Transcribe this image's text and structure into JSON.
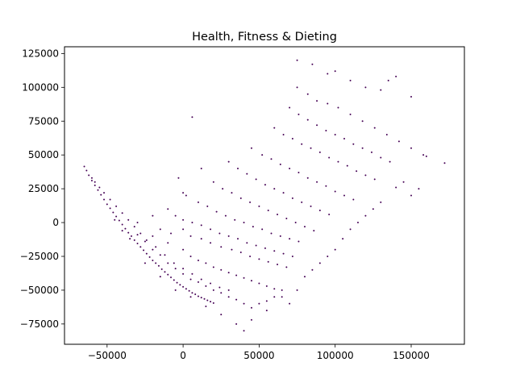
{
  "chart_data": {
    "type": "scatter",
    "title": "Health, Fitness & Dieting",
    "xlabel": "",
    "ylabel": "",
    "xlim": [
      -78000,
      185000
    ],
    "ylim": [
      -90000,
      130000
    ],
    "xticks": [
      -50000,
      0,
      50000,
      100000,
      150000
    ],
    "xtick_labels": [
      "−50000",
      "0",
      "50000",
      "100000",
      "150000"
    ],
    "yticks": [
      -75000,
      -50000,
      -25000,
      0,
      25000,
      50000,
      75000,
      100000,
      125000
    ],
    "ytick_labels": [
      "−75000",
      "−50000",
      "−25000",
      "0",
      "25000",
      "50000",
      "75000",
      "100000",
      "125000"
    ],
    "grid": false,
    "legend": "none",
    "marker_color": "#440154",
    "series": [
      {
        "points": [
          [
            -65000,
            41500
          ],
          [
            -63500,
            38500
          ],
          [
            -62000,
            35000
          ],
          [
            -60000,
            31000
          ],
          [
            -58000,
            27500
          ],
          [
            -56000,
            24000
          ],
          [
            -54000,
            20500
          ],
          [
            -52000,
            17000
          ],
          [
            -50000,
            13500
          ],
          [
            -48000,
            10500
          ],
          [
            -46000,
            7500
          ],
          [
            -44000,
            4500
          ],
          [
            -42000,
            1500
          ],
          [
            -40000,
            -1500
          ],
          [
            -38000,
            -4500
          ],
          [
            -36000,
            -7500
          ],
          [
            -34000,
            -10000
          ],
          [
            -32000,
            -13000
          ],
          [
            -30000,
            -15500
          ],
          [
            -28000,
            -18000
          ],
          [
            -26000,
            -20500
          ],
          [
            -24000,
            -23000
          ],
          [
            -22000,
            -25500
          ],
          [
            -20000,
            -28000
          ],
          [
            -18000,
            -30000
          ],
          [
            -16000,
            -32000
          ],
          [
            -14000,
            -34500
          ],
          [
            -12000,
            -36500
          ],
          [
            -10000,
            -38500
          ],
          [
            -8000,
            -40500
          ],
          [
            -6000,
            -42500
          ],
          [
            -4000,
            -44500
          ],
          [
            -2000,
            -46000
          ],
          [
            0,
            -47500
          ],
          [
            2000,
            -49000
          ],
          [
            4000,
            -50500
          ],
          [
            6000,
            -52000
          ],
          [
            8000,
            -53000
          ],
          [
            10000,
            -54500
          ],
          [
            12000,
            -55500
          ],
          [
            14000,
            -56500
          ],
          [
            16000,
            -57500
          ],
          [
            18000,
            -58500
          ],
          [
            20000,
            -59500
          ],
          [
            -45000,
            2000
          ],
          [
            -40000,
            -6000
          ],
          [
            -35000,
            -12000
          ],
          [
            -30000,
            -9000
          ],
          [
            -25000,
            -14000
          ],
          [
            -20000,
            -20000
          ],
          [
            -15000,
            -24000
          ],
          [
            -10000,
            -30000
          ],
          [
            -5000,
            -34000
          ],
          [
            0,
            -38000
          ],
          [
            5000,
            -42000
          ],
          [
            10000,
            -44000
          ],
          [
            15000,
            -47000
          ],
          [
            20000,
            -50000
          ],
          [
            25000,
            -52000
          ],
          [
            30000,
            -55000
          ],
          [
            35000,
            -57000
          ],
          [
            40000,
            -60000
          ],
          [
            45000,
            -63000
          ],
          [
            50000,
            -60000
          ],
          [
            55000,
            -58000
          ],
          [
            60000,
            -55000
          ],
          [
            -20000,
            -10000
          ],
          [
            -10000,
            -15000
          ],
          [
            0,
            -20000
          ],
          [
            5000,
            -25000
          ],
          [
            10000,
            -28000
          ],
          [
            15000,
            -30000
          ],
          [
            20000,
            -33000
          ],
          [
            25000,
            -35000
          ],
          [
            30000,
            -37000
          ],
          [
            35000,
            -39000
          ],
          [
            40000,
            -41000
          ],
          [
            45000,
            -43000
          ],
          [
            50000,
            -45000
          ],
          [
            55000,
            -47000
          ],
          [
            60000,
            -49000
          ],
          [
            65000,
            -50000
          ],
          [
            -15000,
            -5000
          ],
          [
            -8000,
            -8000
          ],
          [
            0,
            -5000
          ],
          [
            5000,
            -10000
          ],
          [
            12000,
            -12000
          ],
          [
            18000,
            -15000
          ],
          [
            25000,
            -18000
          ],
          [
            32000,
            -20000
          ],
          [
            38000,
            -22000
          ],
          [
            44000,
            -25000
          ],
          [
            50000,
            -27000
          ],
          [
            56000,
            -29000
          ],
          [
            62000,
            -31000
          ],
          [
            68000,
            -33000
          ],
          [
            -5000,
            5000
          ],
          [
            0,
            2000
          ],
          [
            6000,
            0
          ],
          [
            12000,
            -2000
          ],
          [
            18000,
            -5000
          ],
          [
            24000,
            -8000
          ],
          [
            30000,
            -10000
          ],
          [
            36000,
            -12000
          ],
          [
            42000,
            -15000
          ],
          [
            48000,
            -17000
          ],
          [
            54000,
            -19000
          ],
          [
            60000,
            -21000
          ],
          [
            66000,
            -23000
          ],
          [
            72000,
            -25000
          ],
          [
            2000,
            20000
          ],
          [
            10000,
            15000
          ],
          [
            16000,
            12000
          ],
          [
            22000,
            8000
          ],
          [
            28000,
            5000
          ],
          [
            34000,
            2000
          ],
          [
            40000,
            0
          ],
          [
            46000,
            -3000
          ],
          [
            52000,
            -5000
          ],
          [
            58000,
            -8000
          ],
          [
            64000,
            -10000
          ],
          [
            70000,
            -12000
          ],
          [
            76000,
            -14000
          ],
          [
            20000,
            30000
          ],
          [
            26000,
            25000
          ],
          [
            32000,
            22000
          ],
          [
            38000,
            18000
          ],
          [
            44000,
            15000
          ],
          [
            50000,
            12000
          ],
          [
            56000,
            9000
          ],
          [
            62000,
            6000
          ],
          [
            68000,
            3000
          ],
          [
            74000,
            0
          ],
          [
            80000,
            -3000
          ],
          [
            86000,
            -6000
          ],
          [
            30000,
            45000
          ],
          [
            36000,
            40000
          ],
          [
            42000,
            36000
          ],
          [
            48000,
            32000
          ],
          [
            54000,
            28000
          ],
          [
            60000,
            25000
          ],
          [
            66000,
            22000
          ],
          [
            72000,
            18000
          ],
          [
            78000,
            15000
          ],
          [
            84000,
            12000
          ],
          [
            90000,
            9000
          ],
          [
            96000,
            6000
          ],
          [
            45000,
            55000
          ],
          [
            52000,
            50000
          ],
          [
            58000,
            47000
          ],
          [
            64000,
            43000
          ],
          [
            70000,
            40000
          ],
          [
            76000,
            37000
          ],
          [
            82000,
            33000
          ],
          [
            88000,
            30000
          ],
          [
            94000,
            27000
          ],
          [
            100000,
            23000
          ],
          [
            106000,
            20000
          ],
          [
            112000,
            17000
          ],
          [
            60000,
            70000
          ],
          [
            66000,
            65000
          ],
          [
            72000,
            62000
          ],
          [
            78000,
            58000
          ],
          [
            84000,
            55000
          ],
          [
            90000,
            52000
          ],
          [
            96000,
            48000
          ],
          [
            102000,
            45000
          ],
          [
            108000,
            42000
          ],
          [
            114000,
            38000
          ],
          [
            120000,
            35000
          ],
          [
            126000,
            32000
          ],
          [
            70000,
            85000
          ],
          [
            76000,
            80000
          ],
          [
            82000,
            76000
          ],
          [
            88000,
            72000
          ],
          [
            94000,
            68000
          ],
          [
            100000,
            65000
          ],
          [
            106000,
            62000
          ],
          [
            112000,
            58000
          ],
          [
            118000,
            55000
          ],
          [
            124000,
            52000
          ],
          [
            130000,
            48000
          ],
          [
            136000,
            45000
          ],
          [
            75000,
            100000
          ],
          [
            82000,
            95000
          ],
          [
            88000,
            90000
          ],
          [
            95000,
            88000
          ],
          [
            102000,
            85000
          ],
          [
            110000,
            80000
          ],
          [
            118000,
            75000
          ],
          [
            126000,
            70000
          ],
          [
            134000,
            65000
          ],
          [
            142000,
            60000
          ],
          [
            150000,
            55000
          ],
          [
            158000,
            50000
          ],
          [
            75000,
            120000
          ],
          [
            85000,
            117000
          ],
          [
            95000,
            110000
          ],
          [
            100000,
            112000
          ],
          [
            110000,
            105000
          ],
          [
            120000,
            100000
          ],
          [
            130000,
            98000
          ],
          [
            135000,
            105000
          ],
          [
            140000,
            108000
          ],
          [
            150000,
            93000
          ],
          [
            160000,
            49000
          ],
          [
            172000,
            44000
          ],
          [
            6000,
            78000
          ],
          [
            -3000,
            33000
          ],
          [
            12000,
            40000
          ],
          [
            0,
            22000
          ],
          [
            -10000,
            10000
          ],
          [
            -20000,
            5000
          ],
          [
            -30000,
            0
          ],
          [
            -25000,
            -30000
          ],
          [
            -15000,
            -40000
          ],
          [
            -5000,
            -50000
          ],
          [
            5000,
            -55000
          ],
          [
            15000,
            -62000
          ],
          [
            25000,
            -68000
          ],
          [
            35000,
            -75000
          ],
          [
            40000,
            -80000
          ],
          [
            45000,
            -72000
          ],
          [
            55000,
            -65000
          ],
          [
            65000,
            -55000
          ],
          [
            70000,
            -60000
          ],
          [
            75000,
            -50000
          ],
          [
            80000,
            -40000
          ],
          [
            85000,
            -35000
          ],
          [
            90000,
            -30000
          ],
          [
            95000,
            -25000
          ],
          [
            100000,
            -20000
          ],
          [
            105000,
            -12000
          ],
          [
            110000,
            -5000
          ],
          [
            115000,
            0
          ],
          [
            120000,
            5000
          ],
          [
            125000,
            10000
          ],
          [
            130000,
            15000
          ],
          [
            140000,
            26000
          ],
          [
            145000,
            30000
          ],
          [
            150000,
            20000
          ],
          [
            155000,
            25000
          ],
          [
            -60000,
            33000
          ],
          [
            -58000,
            30000
          ],
          [
            -55000,
            26000
          ],
          [
            -52000,
            22000
          ],
          [
            -48000,
            17000
          ],
          [
            -44000,
            12000
          ],
          [
            -40000,
            7000
          ],
          [
            -36000,
            2000
          ],
          [
            -32000,
            -3000
          ],
          [
            -28000,
            -8000
          ],
          [
            -24000,
            -13000
          ],
          [
            -18000,
            -18000
          ],
          [
            -12000,
            -24000
          ],
          [
            -6000,
            -30000
          ],
          [
            0,
            -34000
          ],
          [
            6000,
            -38000
          ],
          [
            12000,
            -42000
          ],
          [
            18000,
            -45000
          ],
          [
            24000,
            -48000
          ],
          [
            30000,
            -50000
          ]
        ]
      }
    ]
  }
}
